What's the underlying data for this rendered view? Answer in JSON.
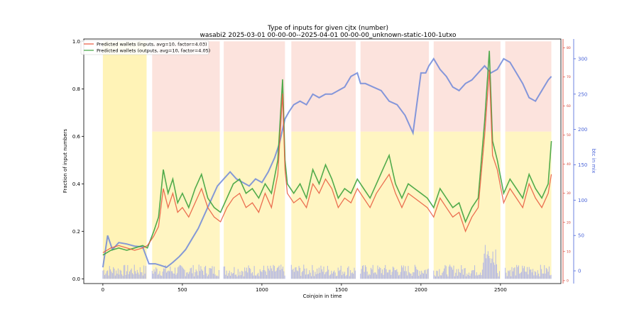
{
  "chart_data": {
    "type": "line",
    "title": "Type of inputs for given cjtx (number)",
    "subtitle": "wasabi2 2025-03-01 00-00-00--2025-04-01 00-00-00_unknown-static-100-1utxo",
    "xlabel": "Coinjoin in time",
    "ylabel": "Fraction of input numbers",
    "y2label": "btc in mix",
    "xlim": [
      -120,
      2880
    ],
    "ylim": [
      -0.02,
      1.01
    ],
    "y2lim": [
      -18,
      328
    ],
    "y3lim": [
      -1,
      83
    ],
    "xticks": [
      0,
      500,
      1000,
      1500,
      2000,
      2500
    ],
    "yticks": [
      0.0,
      0.2,
      0.4,
      0.6,
      0.8,
      1.0
    ],
    "y2ticks": [
      0,
      50,
      100,
      150,
      200,
      250,
      300
    ],
    "y3ticks": [
      0,
      10,
      20,
      30,
      40,
      50,
      60,
      70,
      80
    ],
    "legend_position": "top-left",
    "grid": false,
    "colors": {
      "inputs_line": "#e8573c",
      "outputs_line": "#3ea33e",
      "btc_line": "#6f88d9",
      "bg_yellow": "#fff2b3",
      "bg_pink": "#fbd9d2",
      "bg_blue": "#9aa3f0",
      "y2_axis": "#4a64d8",
      "y3_axis": "#d23a2a"
    },
    "background_segments": [
      [
        310,
        735
      ],
      [
        760,
        1145
      ],
      [
        1185,
        1590
      ],
      [
        1620,
        2050
      ],
      [
        2080,
        2500
      ],
      [
        2530,
        2820
      ]
    ],
    "yellow_segment": [
      0,
      275
    ],
    "series": [
      {
        "name": "Predicted wallets (inputs, avg=10, factor=4.03)",
        "x": [
          0,
          50,
          100,
          150,
          200,
          250,
          280,
          320,
          350,
          380,
          410,
          440,
          470,
          500,
          540,
          580,
          620,
          660,
          700,
          740,
          780,
          820,
          860,
          900,
          940,
          980,
          1020,
          1060,
          1100,
          1130,
          1145,
          1160,
          1200,
          1240,
          1280,
          1320,
          1360,
          1400,
          1440,
          1480,
          1520,
          1560,
          1600,
          1640,
          1680,
          1720,
          1760,
          1800,
          1840,
          1880,
          1920,
          1960,
          2000,
          2040,
          2080,
          2120,
          2160,
          2200,
          2240,
          2280,
          2320,
          2360,
          2400,
          2430,
          2450,
          2480,
          2520,
          2560,
          2600,
          2640,
          2680,
          2720,
          2760,
          2800,
          2820
        ],
        "values": [
          0.11,
          0.13,
          0.14,
          0.13,
          0.12,
          0.13,
          0.14,
          0.18,
          0.22,
          0.38,
          0.3,
          0.36,
          0.28,
          0.3,
          0.26,
          0.32,
          0.38,
          0.3,
          0.26,
          0.24,
          0.3,
          0.34,
          0.36,
          0.3,
          0.32,
          0.28,
          0.36,
          0.3,
          0.44,
          0.78,
          0.46,
          0.36,
          0.32,
          0.34,
          0.3,
          0.4,
          0.36,
          0.42,
          0.38,
          0.3,
          0.34,
          0.32,
          0.38,
          0.34,
          0.3,
          0.36,
          0.4,
          0.44,
          0.36,
          0.3,
          0.36,
          0.34,
          0.32,
          0.3,
          0.26,
          0.34,
          0.3,
          0.26,
          0.28,
          0.2,
          0.26,
          0.3,
          0.6,
          0.88,
          0.52,
          0.46,
          0.32,
          0.38,
          0.34,
          0.3,
          0.4,
          0.34,
          0.3,
          0.36,
          0.44
        ]
      },
      {
        "name": "Predicted wallets (outputs, avg=10, factor=4.05)",
        "x": [
          0,
          50,
          100,
          150,
          200,
          250,
          280,
          320,
          350,
          380,
          410,
          440,
          470,
          500,
          540,
          580,
          620,
          660,
          700,
          740,
          780,
          820,
          860,
          900,
          940,
          980,
          1020,
          1060,
          1100,
          1130,
          1145,
          1160,
          1200,
          1240,
          1280,
          1320,
          1360,
          1400,
          1440,
          1480,
          1520,
          1560,
          1600,
          1640,
          1680,
          1720,
          1760,
          1800,
          1840,
          1880,
          1920,
          1960,
          2000,
          2040,
          2080,
          2120,
          2160,
          2200,
          2240,
          2280,
          2320,
          2360,
          2400,
          2430,
          2450,
          2480,
          2520,
          2560,
          2600,
          2640,
          2680,
          2720,
          2760,
          2800,
          2820
        ],
        "values": [
          0.1,
          0.12,
          0.13,
          0.12,
          0.13,
          0.14,
          0.13,
          0.2,
          0.26,
          0.46,
          0.36,
          0.42,
          0.32,
          0.36,
          0.3,
          0.38,
          0.44,
          0.34,
          0.3,
          0.28,
          0.34,
          0.4,
          0.42,
          0.36,
          0.38,
          0.34,
          0.4,
          0.36,
          0.5,
          0.84,
          0.5,
          0.4,
          0.36,
          0.4,
          0.34,
          0.46,
          0.4,
          0.48,
          0.42,
          0.34,
          0.38,
          0.36,
          0.42,
          0.38,
          0.34,
          0.4,
          0.46,
          0.52,
          0.4,
          0.34,
          0.4,
          0.38,
          0.36,
          0.34,
          0.3,
          0.38,
          0.34,
          0.3,
          0.32,
          0.24,
          0.3,
          0.34,
          0.66,
          0.96,
          0.58,
          0.5,
          0.36,
          0.42,
          0.38,
          0.34,
          0.44,
          0.38,
          0.34,
          0.4,
          0.58
        ]
      },
      {
        "name": "btc in mix",
        "axis": "right",
        "x": [
          0,
          30,
          60,
          100,
          150,
          200,
          250,
          290,
          330,
          360,
          400,
          440,
          480,
          520,
          560,
          600,
          640,
          680,
          720,
          760,
          800,
          840,
          880,
          920,
          960,
          1000,
          1040,
          1080,
          1110,
          1130,
          1145,
          1170,
          1200,
          1240,
          1280,
          1320,
          1360,
          1400,
          1440,
          1480,
          1520,
          1560,
          1600,
          1620,
          1650,
          1700,
          1750,
          1800,
          1850,
          1900,
          1950,
          2000,
          2030,
          2050,
          2080,
          2120,
          2160,
          2200,
          2240,
          2280,
          2320,
          2360,
          2400,
          2440,
          2480,
          2520,
          2560,
          2600,
          2640,
          2680,
          2720,
          2760,
          2800,
          2820
        ],
        "values": [
          5,
          50,
          30,
          40,
          38,
          35,
          34,
          10,
          10,
          8,
          5,
          12,
          20,
          30,
          45,
          60,
          80,
          100,
          120,
          130,
          140,
          130,
          125,
          120,
          130,
          125,
          140,
          160,
          180,
          200,
          215,
          225,
          235,
          240,
          235,
          250,
          245,
          250,
          250,
          255,
          260,
          275,
          280,
          265,
          265,
          260,
          255,
          240,
          235,
          220,
          195,
          280,
          280,
          290,
          300,
          285,
          275,
          260,
          255,
          265,
          270,
          280,
          290,
          280,
          285,
          300,
          295,
          280,
          265,
          245,
          240,
          255,
          270,
          275
        ]
      }
    ]
  }
}
